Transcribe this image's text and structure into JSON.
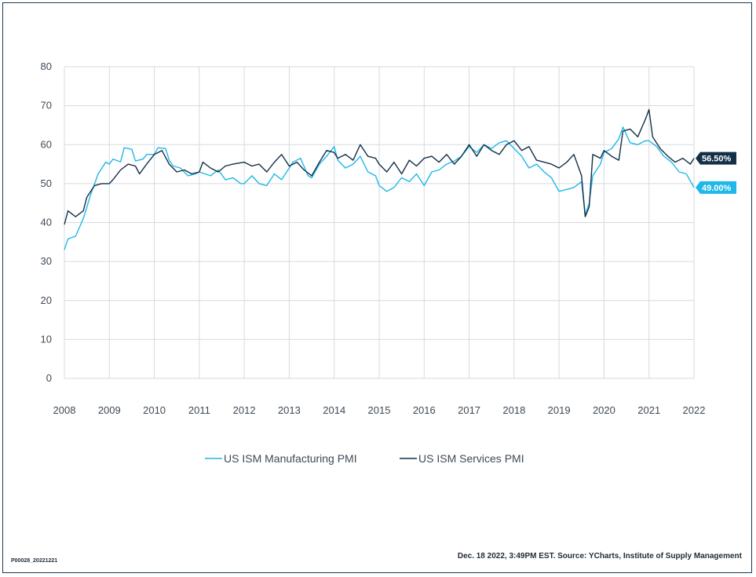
{
  "chart_data": {
    "type": "line",
    "title": "",
    "xlabel": "",
    "ylabel": "",
    "ylim": [
      0,
      80
    ],
    "y_ticks": [
      "0",
      "10",
      "20",
      "30",
      "40",
      "50",
      "60",
      "70",
      "80"
    ],
    "x_ticks": [
      "2008",
      "2009",
      "2010",
      "2011",
      "2012",
      "2013",
      "2014",
      "2015",
      "2016",
      "2017",
      "2018",
      "2019",
      "2020",
      "2021",
      "2022"
    ],
    "x_range": [
      2008.0,
      2022.0
    ],
    "grid": "vertical and horizontal",
    "legend_position": "bottom-center",
    "series": [
      {
        "name": "US ISM Manufacturing PMI",
        "color": "#1fb8e8",
        "end_label": "49.00%",
        "points": [
          [
            2008.0,
            33.0
          ],
          [
            2008.08,
            35.8
          ],
          [
            2008.25,
            36.5
          ],
          [
            2008.42,
            41.0
          ],
          [
            2008.58,
            47.0
          ],
          [
            2008.75,
            52.5
          ],
          [
            2008.92,
            55.5
          ],
          [
            2009.0,
            55.0
          ],
          [
            2009.08,
            56.3
          ],
          [
            2009.25,
            55.6
          ],
          [
            2009.33,
            59.2
          ],
          [
            2009.5,
            58.8
          ],
          [
            2009.58,
            55.8
          ],
          [
            2009.75,
            56.3
          ],
          [
            2009.83,
            57.5
          ],
          [
            2010.0,
            57.5
          ],
          [
            2010.08,
            59.2
          ],
          [
            2010.25,
            59.0
          ],
          [
            2010.33,
            56.0
          ],
          [
            2010.42,
            54.5
          ],
          [
            2010.58,
            54.0
          ],
          [
            2010.75,
            52.0
          ],
          [
            2010.92,
            52.5
          ],
          [
            2011.0,
            53.0
          ],
          [
            2011.25,
            52.0
          ],
          [
            2011.42,
            53.5
          ],
          [
            2011.58,
            51.0
          ],
          [
            2011.75,
            51.5
          ],
          [
            2011.92,
            50.0
          ],
          [
            2012.0,
            50.0
          ],
          [
            2012.17,
            52.0
          ],
          [
            2012.33,
            50.0
          ],
          [
            2012.5,
            49.5
          ],
          [
            2012.67,
            52.5
          ],
          [
            2012.83,
            51.0
          ],
          [
            2013.0,
            54.0
          ],
          [
            2013.08,
            55.5
          ],
          [
            2013.25,
            56.5
          ],
          [
            2013.42,
            52.0
          ],
          [
            2013.5,
            51.5
          ],
          [
            2013.67,
            55.0
          ],
          [
            2013.83,
            57.0
          ],
          [
            2014.0,
            59.5
          ],
          [
            2014.08,
            56.0
          ],
          [
            2014.25,
            54.0
          ],
          [
            2014.42,
            55.0
          ],
          [
            2014.58,
            57.0
          ],
          [
            2014.75,
            53.0
          ],
          [
            2014.92,
            52.0
          ],
          [
            2015.0,
            49.5
          ],
          [
            2015.17,
            48.0
          ],
          [
            2015.33,
            49.0
          ],
          [
            2015.5,
            51.5
          ],
          [
            2015.67,
            50.5
          ],
          [
            2015.83,
            52.5
          ],
          [
            2016.0,
            49.5
          ],
          [
            2016.17,
            53.0
          ],
          [
            2016.33,
            53.5
          ],
          [
            2016.5,
            55.0
          ],
          [
            2016.67,
            55.8
          ],
          [
            2016.83,
            57.0
          ],
          [
            2017.0,
            59.5
          ],
          [
            2017.17,
            58.0
          ],
          [
            2017.33,
            60.0
          ],
          [
            2017.5,
            59.0
          ],
          [
            2017.67,
            60.5
          ],
          [
            2017.83,
            61.0
          ],
          [
            2018.0,
            59.0
          ],
          [
            2018.17,
            57.0
          ],
          [
            2018.33,
            54.0
          ],
          [
            2018.5,
            55.0
          ],
          [
            2018.67,
            53.0
          ],
          [
            2018.83,
            51.5
          ],
          [
            2019.0,
            48.0
          ],
          [
            2019.17,
            48.5
          ],
          [
            2019.33,
            49.0
          ],
          [
            2019.5,
            50.5
          ],
          [
            2019.58,
            42.0
          ],
          [
            2019.67,
            45.0
          ],
          [
            2019.75,
            52.0
          ],
          [
            2019.92,
            55.0
          ],
          [
            2020.0,
            58.0
          ],
          [
            2020.17,
            59.0
          ],
          [
            2020.33,
            61.5
          ],
          [
            2020.42,
            64.5
          ],
          [
            2020.58,
            60.5
          ],
          [
            2020.75,
            60.0
          ],
          [
            2020.92,
            61.0
          ],
          [
            2021.0,
            61.0
          ],
          [
            2021.17,
            59.5
          ],
          [
            2021.33,
            57.0
          ],
          [
            2021.5,
            55.5
          ],
          [
            2021.67,
            53.0
          ],
          [
            2021.83,
            52.5
          ],
          [
            2022.0,
            49.0
          ]
        ]
      },
      {
        "name": "US ISM Services PMI",
        "color": "#142f48",
        "end_label": "56.50%",
        "points": [
          [
            2008.0,
            39.5
          ],
          [
            2008.08,
            43.0
          ],
          [
            2008.25,
            41.5
          ],
          [
            2008.42,
            43.0
          ],
          [
            2008.5,
            46.5
          ],
          [
            2008.67,
            49.5
          ],
          [
            2008.83,
            50.0
          ],
          [
            2009.0,
            50.0
          ],
          [
            2009.08,
            51.0
          ],
          [
            2009.25,
            53.5
          ],
          [
            2009.42,
            55.0
          ],
          [
            2009.58,
            54.5
          ],
          [
            2009.67,
            52.5
          ],
          [
            2009.83,
            55.0
          ],
          [
            2010.0,
            57.5
          ],
          [
            2010.17,
            58.5
          ],
          [
            2010.33,
            55.0
          ],
          [
            2010.5,
            53.0
          ],
          [
            2010.67,
            53.5
          ],
          [
            2010.83,
            52.5
          ],
          [
            2011.0,
            53.0
          ],
          [
            2011.08,
            55.5
          ],
          [
            2011.25,
            54.0
          ],
          [
            2011.42,
            53.0
          ],
          [
            2011.58,
            54.5
          ],
          [
            2011.75,
            55.0
          ],
          [
            2012.0,
            55.5
          ],
          [
            2012.17,
            54.5
          ],
          [
            2012.33,
            55.0
          ],
          [
            2012.5,
            53.0
          ],
          [
            2012.67,
            55.5
          ],
          [
            2012.83,
            57.5
          ],
          [
            2013.0,
            54.5
          ],
          [
            2013.17,
            55.5
          ],
          [
            2013.33,
            53.5
          ],
          [
            2013.5,
            52.0
          ],
          [
            2013.67,
            55.5
          ],
          [
            2013.83,
            58.5
          ],
          [
            2014.0,
            58.0
          ],
          [
            2014.08,
            56.5
          ],
          [
            2014.25,
            57.5
          ],
          [
            2014.42,
            56.0
          ],
          [
            2014.58,
            60.0
          ],
          [
            2014.75,
            57.0
          ],
          [
            2014.92,
            56.5
          ],
          [
            2015.0,
            55.0
          ],
          [
            2015.17,
            53.0
          ],
          [
            2015.33,
            55.5
          ],
          [
            2015.5,
            52.5
          ],
          [
            2015.67,
            56.0
          ],
          [
            2015.83,
            54.5
          ],
          [
            2016.0,
            56.5
          ],
          [
            2016.17,
            57.0
          ],
          [
            2016.33,
            55.5
          ],
          [
            2016.5,
            57.5
          ],
          [
            2016.67,
            55.0
          ],
          [
            2016.83,
            57.0
          ],
          [
            2017.0,
            60.0
          ],
          [
            2017.17,
            57.0
          ],
          [
            2017.33,
            60.0
          ],
          [
            2017.5,
            58.5
          ],
          [
            2017.67,
            57.5
          ],
          [
            2017.83,
            60.0
          ],
          [
            2018.0,
            61.0
          ],
          [
            2018.17,
            58.5
          ],
          [
            2018.33,
            59.5
          ],
          [
            2018.5,
            56.0
          ],
          [
            2018.67,
            55.5
          ],
          [
            2018.83,
            55.0
          ],
          [
            2019.0,
            54.0
          ],
          [
            2019.17,
            55.5
          ],
          [
            2019.33,
            57.5
          ],
          [
            2019.5,
            52.0
          ],
          [
            2019.58,
            41.5
          ],
          [
            2019.67,
            44.0
          ],
          [
            2019.75,
            57.5
          ],
          [
            2019.92,
            56.5
          ],
          [
            2020.0,
            58.5
          ],
          [
            2020.17,
            57.0
          ],
          [
            2020.33,
            56.0
          ],
          [
            2020.42,
            63.5
          ],
          [
            2020.58,
            64.0
          ],
          [
            2020.75,
            62.0
          ],
          [
            2020.92,
            66.5
          ],
          [
            2021.0,
            69.0
          ],
          [
            2021.08,
            62.0
          ],
          [
            2021.25,
            59.0
          ],
          [
            2021.42,
            57.0
          ],
          [
            2021.58,
            55.5
          ],
          [
            2021.75,
            56.5
          ],
          [
            2021.92,
            55.0
          ],
          [
            2022.0,
            56.5
          ]
        ]
      }
    ]
  },
  "footer": {
    "code": "P00028_20221221",
    "source": "Dec. 18 2022, 3:49PM EST. Source: YCharts, Institute of Supply Management"
  }
}
